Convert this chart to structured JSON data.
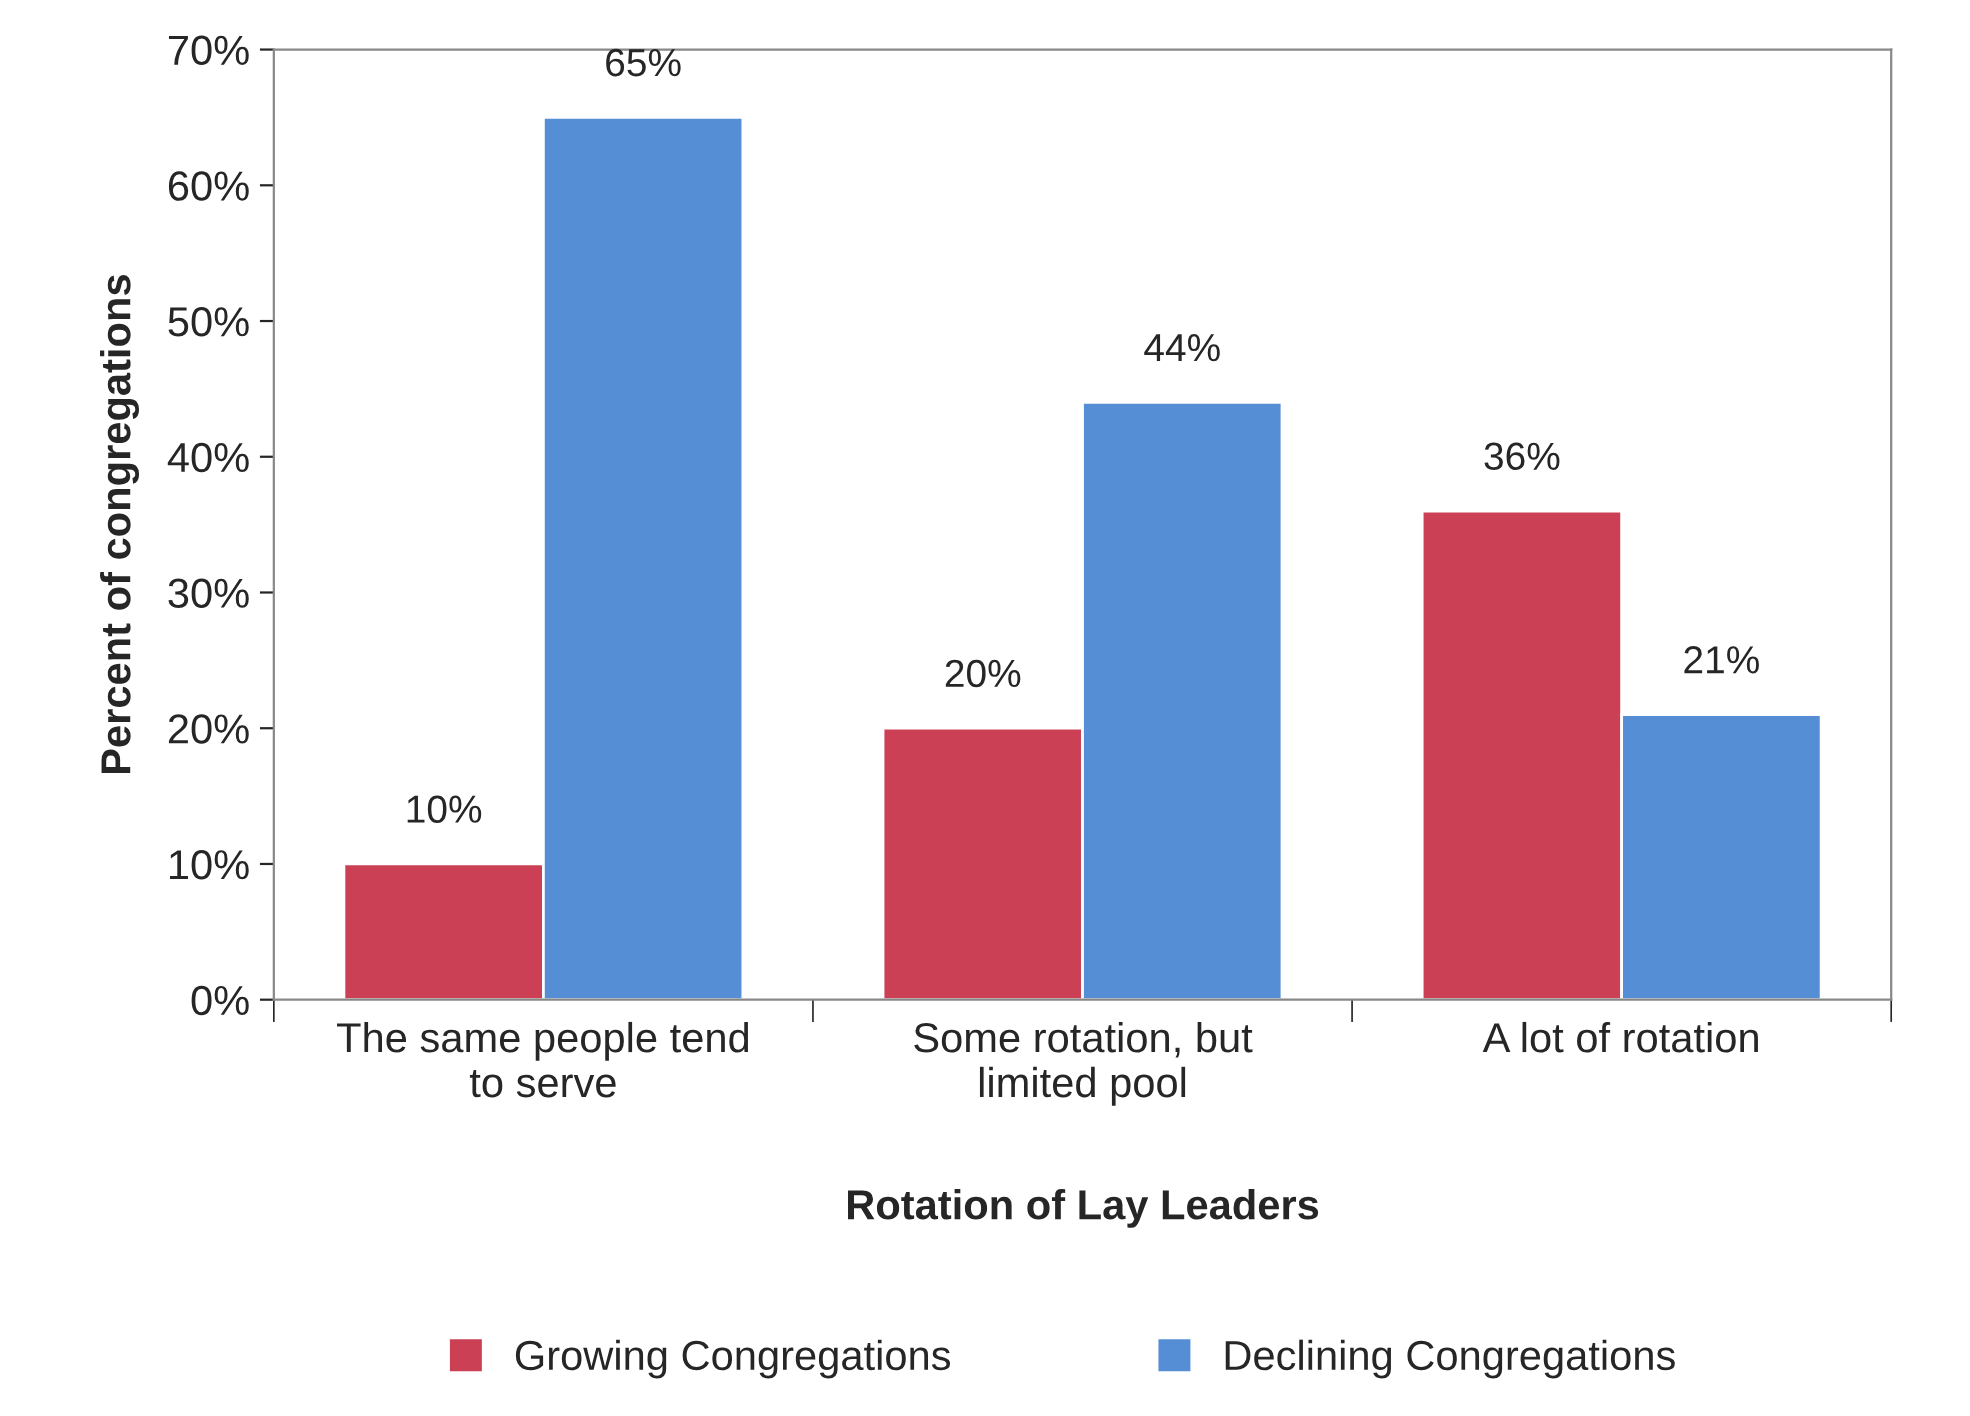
{
  "chart_data": {
    "type": "bar",
    "xlabel": "Rotation of Lay Leaders",
    "ylabel": "Percent of congregations",
    "categories": [
      "The same people tend\nto serve",
      "Some rotation, but\nlimited pool",
      "A lot of rotation"
    ],
    "series": [
      {
        "name": "Growing Congregations",
        "color": "#cc4055",
        "values": [
          10,
          20,
          36
        ],
        "value_labels": [
          "10%",
          "20%",
          "36%"
        ]
      },
      {
        "name": "Declining Congregations",
        "color": "#558ed5",
        "values": [
          65,
          44,
          21
        ],
        "value_labels": [
          "65%",
          "44%",
          "21%"
        ]
      }
    ],
    "ylim": [
      0,
      70
    ],
    "yticks": [
      {
        "value": 0,
        "label": "0%"
      },
      {
        "value": 10,
        "label": "10%"
      },
      {
        "value": 20,
        "label": "20%"
      },
      {
        "value": 30,
        "label": "30%"
      },
      {
        "value": 40,
        "label": "40%"
      },
      {
        "value": 50,
        "label": "50%"
      },
      {
        "value": 60,
        "label": "60%"
      },
      {
        "value": 70,
        "label": "70%"
      }
    ],
    "grid": false,
    "legend": "bottom"
  }
}
